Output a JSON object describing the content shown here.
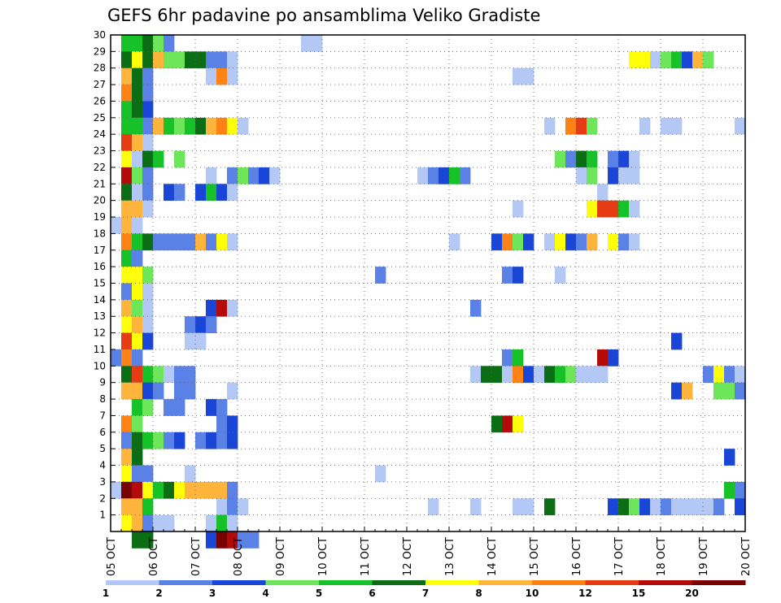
{
  "chart_data": {
    "type": "heatmap",
    "title": "GEFS 6hr padavine po ansamblima Veliko Gradiste",
    "x_ticks": [
      "05 OCT",
      "06 OCT",
      "07 OCT",
      "08 OCT",
      "09 OCT",
      "10 OCT",
      "11 OCT",
      "12 OCT",
      "13 OCT",
      "14 OCT",
      "15 OCT",
      "16 OCT",
      "17 OCT",
      "18 OCT",
      "19 OCT",
      "20 OCT"
    ],
    "y_ticks": [
      1,
      2,
      3,
      4,
      5,
      6,
      7,
      8,
      9,
      10,
      11,
      12,
      13,
      14,
      15,
      16,
      17,
      18,
      19,
      20,
      21,
      22,
      23,
      24,
      25,
      26,
      27,
      28,
      29,
      30
    ],
    "xlim": [
      0,
      60
    ],
    "ylim": [
      0,
      30
    ],
    "grid": true,
    "colorbar": {
      "labels": [
        "1",
        "2",
        "3",
        "4",
        "5",
        "6",
        "7",
        "8",
        "10",
        "12",
        "15",
        "20"
      ],
      "colors": [
        "#b4c8f5",
        "#5a82e6",
        "#1a46d8",
        "#6ee65a",
        "#16c228",
        "#0c6e14",
        "#ffff0a",
        "#ffb43c",
        "#ff8214",
        "#e63c14",
        "#b40a0a",
        "#780000"
      ]
    },
    "cells": [
      [
        1,
        29,
        5
      ],
      [
        2,
        29,
        5
      ],
      [
        3,
        29,
        6
      ],
      [
        4,
        29,
        4
      ],
      [
        5,
        29,
        2
      ],
      [
        18,
        29,
        1
      ],
      [
        19,
        29,
        1
      ],
      [
        1,
        28,
        6
      ],
      [
        2,
        28,
        7
      ],
      [
        3,
        28,
        6
      ],
      [
        4,
        28,
        8
      ],
      [
        5,
        28,
        4
      ],
      [
        6,
        28,
        4
      ],
      [
        7,
        28,
        6
      ],
      [
        8,
        28,
        6
      ],
      [
        9,
        28,
        2
      ],
      [
        10,
        28,
        2
      ],
      [
        11,
        28,
        1
      ],
      [
        49,
        28,
        7
      ],
      [
        50,
        28,
        7
      ],
      [
        51,
        28,
        1
      ],
      [
        52,
        28,
        4
      ],
      [
        53,
        28,
        5
      ],
      [
        54,
        28,
        3
      ],
      [
        55,
        28,
        8
      ],
      [
        56,
        28,
        4
      ],
      [
        1,
        27,
        8
      ],
      [
        2,
        27,
        6
      ],
      [
        3,
        27,
        2
      ],
      [
        9,
        27,
        1
      ],
      [
        10,
        27,
        9
      ],
      [
        11,
        27,
        1
      ],
      [
        38,
        27,
        1
      ],
      [
        39,
        27,
        1
      ],
      [
        1,
        26,
        9
      ],
      [
        2,
        26,
        6
      ],
      [
        3,
        26,
        2
      ],
      [
        1,
        25,
        5
      ],
      [
        2,
        25,
        6
      ],
      [
        3,
        25,
        3
      ],
      [
        1,
        24,
        5
      ],
      [
        2,
        24,
        5
      ],
      [
        3,
        24,
        2
      ],
      [
        4,
        24,
        8
      ],
      [
        5,
        24,
        5
      ],
      [
        6,
        24,
        4
      ],
      [
        7,
        24,
        5
      ],
      [
        8,
        24,
        6
      ],
      [
        9,
        24,
        8
      ],
      [
        10,
        24,
        9
      ],
      [
        11,
        24,
        7
      ],
      [
        12,
        24,
        1
      ],
      [
        41,
        24,
        1
      ],
      [
        43,
        24,
        9
      ],
      [
        44,
        24,
        10
      ],
      [
        45,
        24,
        4
      ],
      [
        50,
        24,
        1
      ],
      [
        52,
        24,
        1
      ],
      [
        53,
        24,
        1
      ],
      [
        59,
        24,
        1
      ],
      [
        1,
        23,
        10
      ],
      [
        2,
        23,
        8
      ],
      [
        3,
        23,
        1
      ],
      [
        1,
        22,
        7
      ],
      [
        2,
        22,
        1
      ],
      [
        3,
        22,
        6
      ],
      [
        4,
        22,
        5
      ],
      [
        6,
        22,
        4
      ],
      [
        42,
        22,
        4
      ],
      [
        43,
        22,
        2
      ],
      [
        44,
        22,
        6
      ],
      [
        45,
        22,
        5
      ],
      [
        47,
        22,
        2
      ],
      [
        48,
        22,
        3
      ],
      [
        49,
        22,
        1
      ],
      [
        1,
        21,
        11
      ],
      [
        2,
        21,
        4
      ],
      [
        3,
        21,
        2
      ],
      [
        9,
        21,
        1
      ],
      [
        11,
        21,
        2
      ],
      [
        12,
        21,
        4
      ],
      [
        13,
        21,
        2
      ],
      [
        14,
        21,
        3
      ],
      [
        15,
        21,
        1
      ],
      [
        29,
        21,
        1
      ],
      [
        30,
        21,
        2
      ],
      [
        31,
        21,
        3
      ],
      [
        32,
        21,
        5
      ],
      [
        33,
        21,
        2
      ],
      [
        44,
        21,
        1
      ],
      [
        45,
        21,
        4
      ],
      [
        47,
        21,
        3
      ],
      [
        48,
        21,
        1
      ],
      [
        49,
        21,
        1
      ],
      [
        1,
        20,
        6
      ],
      [
        2,
        20,
        1
      ],
      [
        3,
        20,
        2
      ],
      [
        5,
        20,
        3
      ],
      [
        6,
        20,
        2
      ],
      [
        8,
        20,
        3
      ],
      [
        9,
        20,
        5
      ],
      [
        10,
        20,
        3
      ],
      [
        11,
        20,
        1
      ],
      [
        46,
        20,
        1
      ],
      [
        1,
        19,
        8
      ],
      [
        2,
        19,
        8
      ],
      [
        3,
        19,
        1
      ],
      [
        38,
        19,
        1
      ],
      [
        45,
        19,
        7
      ],
      [
        46,
        19,
        10
      ],
      [
        47,
        19,
        10
      ],
      [
        48,
        19,
        5
      ],
      [
        49,
        19,
        1
      ],
      [
        0,
        18,
        1
      ],
      [
        1,
        18,
        8
      ],
      [
        2,
        18,
        1
      ],
      [
        1,
        17,
        9
      ],
      [
        2,
        17,
        5
      ],
      [
        3,
        17,
        6
      ],
      [
        4,
        17,
        2
      ],
      [
        5,
        17,
        2
      ],
      [
        6,
        17,
        2
      ],
      [
        7,
        17,
        2
      ],
      [
        8,
        17,
        8
      ],
      [
        9,
        17,
        2
      ],
      [
        10,
        17,
        7
      ],
      [
        11,
        17,
        1
      ],
      [
        32,
        17,
        1
      ],
      [
        36,
        17,
        3
      ],
      [
        37,
        17,
        9
      ],
      [
        38,
        17,
        4
      ],
      [
        39,
        17,
        3
      ],
      [
        41,
        17,
        1
      ],
      [
        42,
        17,
        7
      ],
      [
        43,
        17,
        3
      ],
      [
        44,
        17,
        2
      ],
      [
        45,
        17,
        8
      ],
      [
        47,
        17,
        7
      ],
      [
        48,
        17,
        2
      ],
      [
        49,
        17,
        1
      ],
      [
        1,
        16,
        5
      ],
      [
        2,
        16,
        2
      ],
      [
        1,
        15,
        7
      ],
      [
        2,
        15,
        7
      ],
      [
        3,
        15,
        4
      ],
      [
        25,
        15,
        2
      ],
      [
        37,
        15,
        2
      ],
      [
        38,
        15,
        3
      ],
      [
        42,
        15,
        1
      ],
      [
        1,
        14,
        2
      ],
      [
        2,
        14,
        7
      ],
      [
        3,
        14,
        1
      ],
      [
        1,
        13,
        8
      ],
      [
        2,
        13,
        4
      ],
      [
        3,
        13,
        1
      ],
      [
        9,
        13,
        3
      ],
      [
        10,
        13,
        11
      ],
      [
        11,
        13,
        1
      ],
      [
        34,
        13,
        2
      ],
      [
        1,
        12,
        7
      ],
      [
        2,
        12,
        8
      ],
      [
        3,
        12,
        1
      ],
      [
        7,
        12,
        2
      ],
      [
        8,
        12,
        3
      ],
      [
        9,
        12,
        2
      ],
      [
        1,
        11,
        10
      ],
      [
        2,
        11,
        7
      ],
      [
        3,
        11,
        3
      ],
      [
        7,
        11,
        1
      ],
      [
        8,
        11,
        1
      ],
      [
        53,
        11,
        3
      ],
      [
        0,
        10,
        2
      ],
      [
        1,
        10,
        9
      ],
      [
        2,
        10,
        2
      ],
      [
        37,
        10,
        2
      ],
      [
        38,
        10,
        5
      ],
      [
        46,
        10,
        11
      ],
      [
        47,
        10,
        3
      ],
      [
        1,
        9,
        6
      ],
      [
        2,
        9,
        10
      ],
      [
        3,
        9,
        5
      ],
      [
        4,
        9,
        4
      ],
      [
        5,
        9,
        1
      ],
      [
        6,
        9,
        2
      ],
      [
        7,
        9,
        2
      ],
      [
        34,
        9,
        1
      ],
      [
        35,
        9,
        6
      ],
      [
        36,
        9,
        6
      ],
      [
        37,
        9,
        1
      ],
      [
        38,
        9,
        9
      ],
      [
        39,
        9,
        3
      ],
      [
        40,
        9,
        1
      ],
      [
        41,
        9,
        6
      ],
      [
        42,
        9,
        5
      ],
      [
        43,
        9,
        4
      ],
      [
        44,
        9,
        1
      ],
      [
        45,
        9,
        1
      ],
      [
        46,
        9,
        1
      ],
      [
        56,
        9,
        2
      ],
      [
        57,
        9,
        7
      ],
      [
        58,
        9,
        2
      ],
      [
        59,
        9,
        1
      ],
      [
        1,
        8,
        8
      ],
      [
        2,
        8,
        8
      ],
      [
        3,
        8,
        3
      ],
      [
        4,
        8,
        2
      ],
      [
        6,
        8,
        2
      ],
      [
        7,
        8,
        2
      ],
      [
        11,
        8,
        1
      ],
      [
        53,
        8,
        3
      ],
      [
        54,
        8,
        8
      ],
      [
        57,
        8,
        4
      ],
      [
        58,
        8,
        4
      ],
      [
        59,
        8,
        2
      ],
      [
        2,
        7,
        5
      ],
      [
        3,
        7,
        4
      ],
      [
        5,
        7,
        2
      ],
      [
        6,
        7,
        2
      ],
      [
        9,
        7,
        3
      ],
      [
        10,
        7,
        2
      ],
      [
        1,
        6,
        9
      ],
      [
        2,
        6,
        4
      ],
      [
        10,
        6,
        2
      ],
      [
        11,
        6,
        3
      ],
      [
        36,
        6,
        6
      ],
      [
        37,
        6,
        11
      ],
      [
        38,
        6,
        7
      ],
      [
        1,
        5,
        2
      ],
      [
        2,
        5,
        6
      ],
      [
        3,
        5,
        5
      ],
      [
        4,
        5,
        4
      ],
      [
        5,
        5,
        2
      ],
      [
        6,
        5,
        3
      ],
      [
        8,
        5,
        2
      ],
      [
        9,
        5,
        3
      ],
      [
        10,
        5,
        2
      ],
      [
        11,
        5,
        3
      ],
      [
        1,
        4,
        8
      ],
      [
        2,
        4,
        6
      ],
      [
        58,
        4,
        3
      ],
      [
        1,
        3,
        7
      ],
      [
        2,
        3,
        2
      ],
      [
        3,
        3,
        2
      ],
      [
        7,
        3,
        1
      ],
      [
        25,
        3,
        1
      ],
      [
        0,
        2,
        1
      ],
      [
        1,
        2,
        12
      ],
      [
        2,
        2,
        11
      ],
      [
        3,
        2,
        7
      ],
      [
        4,
        2,
        5
      ],
      [
        5,
        2,
        6
      ],
      [
        6,
        2,
        7
      ],
      [
        7,
        2,
        8
      ],
      [
        8,
        2,
        8
      ],
      [
        9,
        2,
        8
      ],
      [
        10,
        2,
        8
      ],
      [
        11,
        2,
        2
      ],
      [
        58,
        2,
        5
      ],
      [
        59,
        2,
        2
      ],
      [
        1,
        1,
        8
      ],
      [
        2,
        1,
        8
      ],
      [
        3,
        1,
        5
      ],
      [
        10,
        1,
        1
      ],
      [
        11,
        1,
        2
      ],
      [
        12,
        1,
        1
      ],
      [
        30,
        1,
        1
      ],
      [
        34,
        1,
        1
      ],
      [
        38,
        1,
        1
      ],
      [
        39,
        1,
        1
      ],
      [
        41,
        1,
        6
      ],
      [
        47,
        1,
        3
      ],
      [
        48,
        1,
        6
      ],
      [
        49,
        1,
        4
      ],
      [
        50,
        1,
        3
      ],
      [
        51,
        1,
        1
      ],
      [
        52,
        1,
        2
      ],
      [
        53,
        1,
        1
      ],
      [
        54,
        1,
        1
      ],
      [
        55,
        1,
        1
      ],
      [
        56,
        1,
        1
      ],
      [
        57,
        1,
        2
      ],
      [
        59,
        1,
        3
      ],
      [
        1,
        0,
        7
      ],
      [
        2,
        0,
        8
      ],
      [
        3,
        0,
        2
      ],
      [
        4,
        0,
        1
      ],
      [
        5,
        0,
        1
      ],
      [
        9,
        0,
        1
      ],
      [
        10,
        0,
        5
      ],
      [
        11,
        0,
        1
      ],
      [
        2,
        -1,
        6
      ],
      [
        3,
        -1,
        6
      ],
      [
        9,
        -1,
        3
      ],
      [
        10,
        -1,
        12
      ],
      [
        11,
        -1,
        11
      ],
      [
        12,
        -1,
        2
      ],
      [
        13,
        -1,
        2
      ]
    ]
  }
}
